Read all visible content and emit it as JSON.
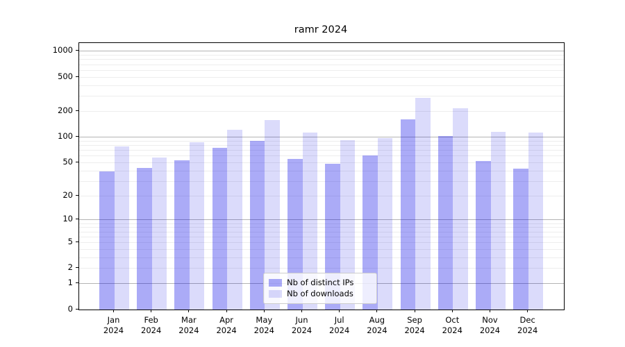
{
  "title": "ramr 2024",
  "colors": {
    "ips_bar": "rgba(0,0,230,0.33)",
    "downloads_bar": "rgba(0,0,230,0.14)",
    "grid_major": "#b3b3b3",
    "grid_minor": "#ededed",
    "axis": "#000000",
    "text": "#000000",
    "legend_border": "#cccccc",
    "legend_bg": "rgba(255,255,255,0.8)"
  },
  "legend": {
    "items": [
      {
        "label": "Nb of distinct IPs",
        "color_key": "ips_bar"
      },
      {
        "label": "Nb of downloads",
        "color_key": "downloads_bar"
      }
    ],
    "position": "lower center"
  },
  "chart_data": {
    "type": "bar",
    "title": "ramr 2024",
    "categories": [
      "Jan",
      "Feb",
      "Mar",
      "Apr",
      "May",
      "Jun",
      "Jul",
      "Aug",
      "Sep",
      "Oct",
      "Nov",
      "Dec"
    ],
    "year": "2024",
    "series": [
      {
        "name": "Nb of distinct IPs",
        "values": [
          39,
          43,
          53,
          75,
          90,
          55,
          48,
          61,
          160,
          102,
          52,
          42
        ]
      },
      {
        "name": "Nb of downloads",
        "values": [
          77,
          57,
          87,
          122,
          157,
          113,
          92,
          98,
          287,
          218,
          115,
          113
        ]
      }
    ],
    "xlabel": "",
    "ylabel": "",
    "yscale": "log1p",
    "yticks": [
      0,
      1,
      2,
      5,
      10,
      20,
      50,
      100,
      200,
      500,
      1000
    ],
    "ylim": [
      0,
      1250
    ],
    "grid": true,
    "grid_major_at": [
      1,
      10,
      100,
      1000
    ],
    "legend_position": "lower center"
  }
}
